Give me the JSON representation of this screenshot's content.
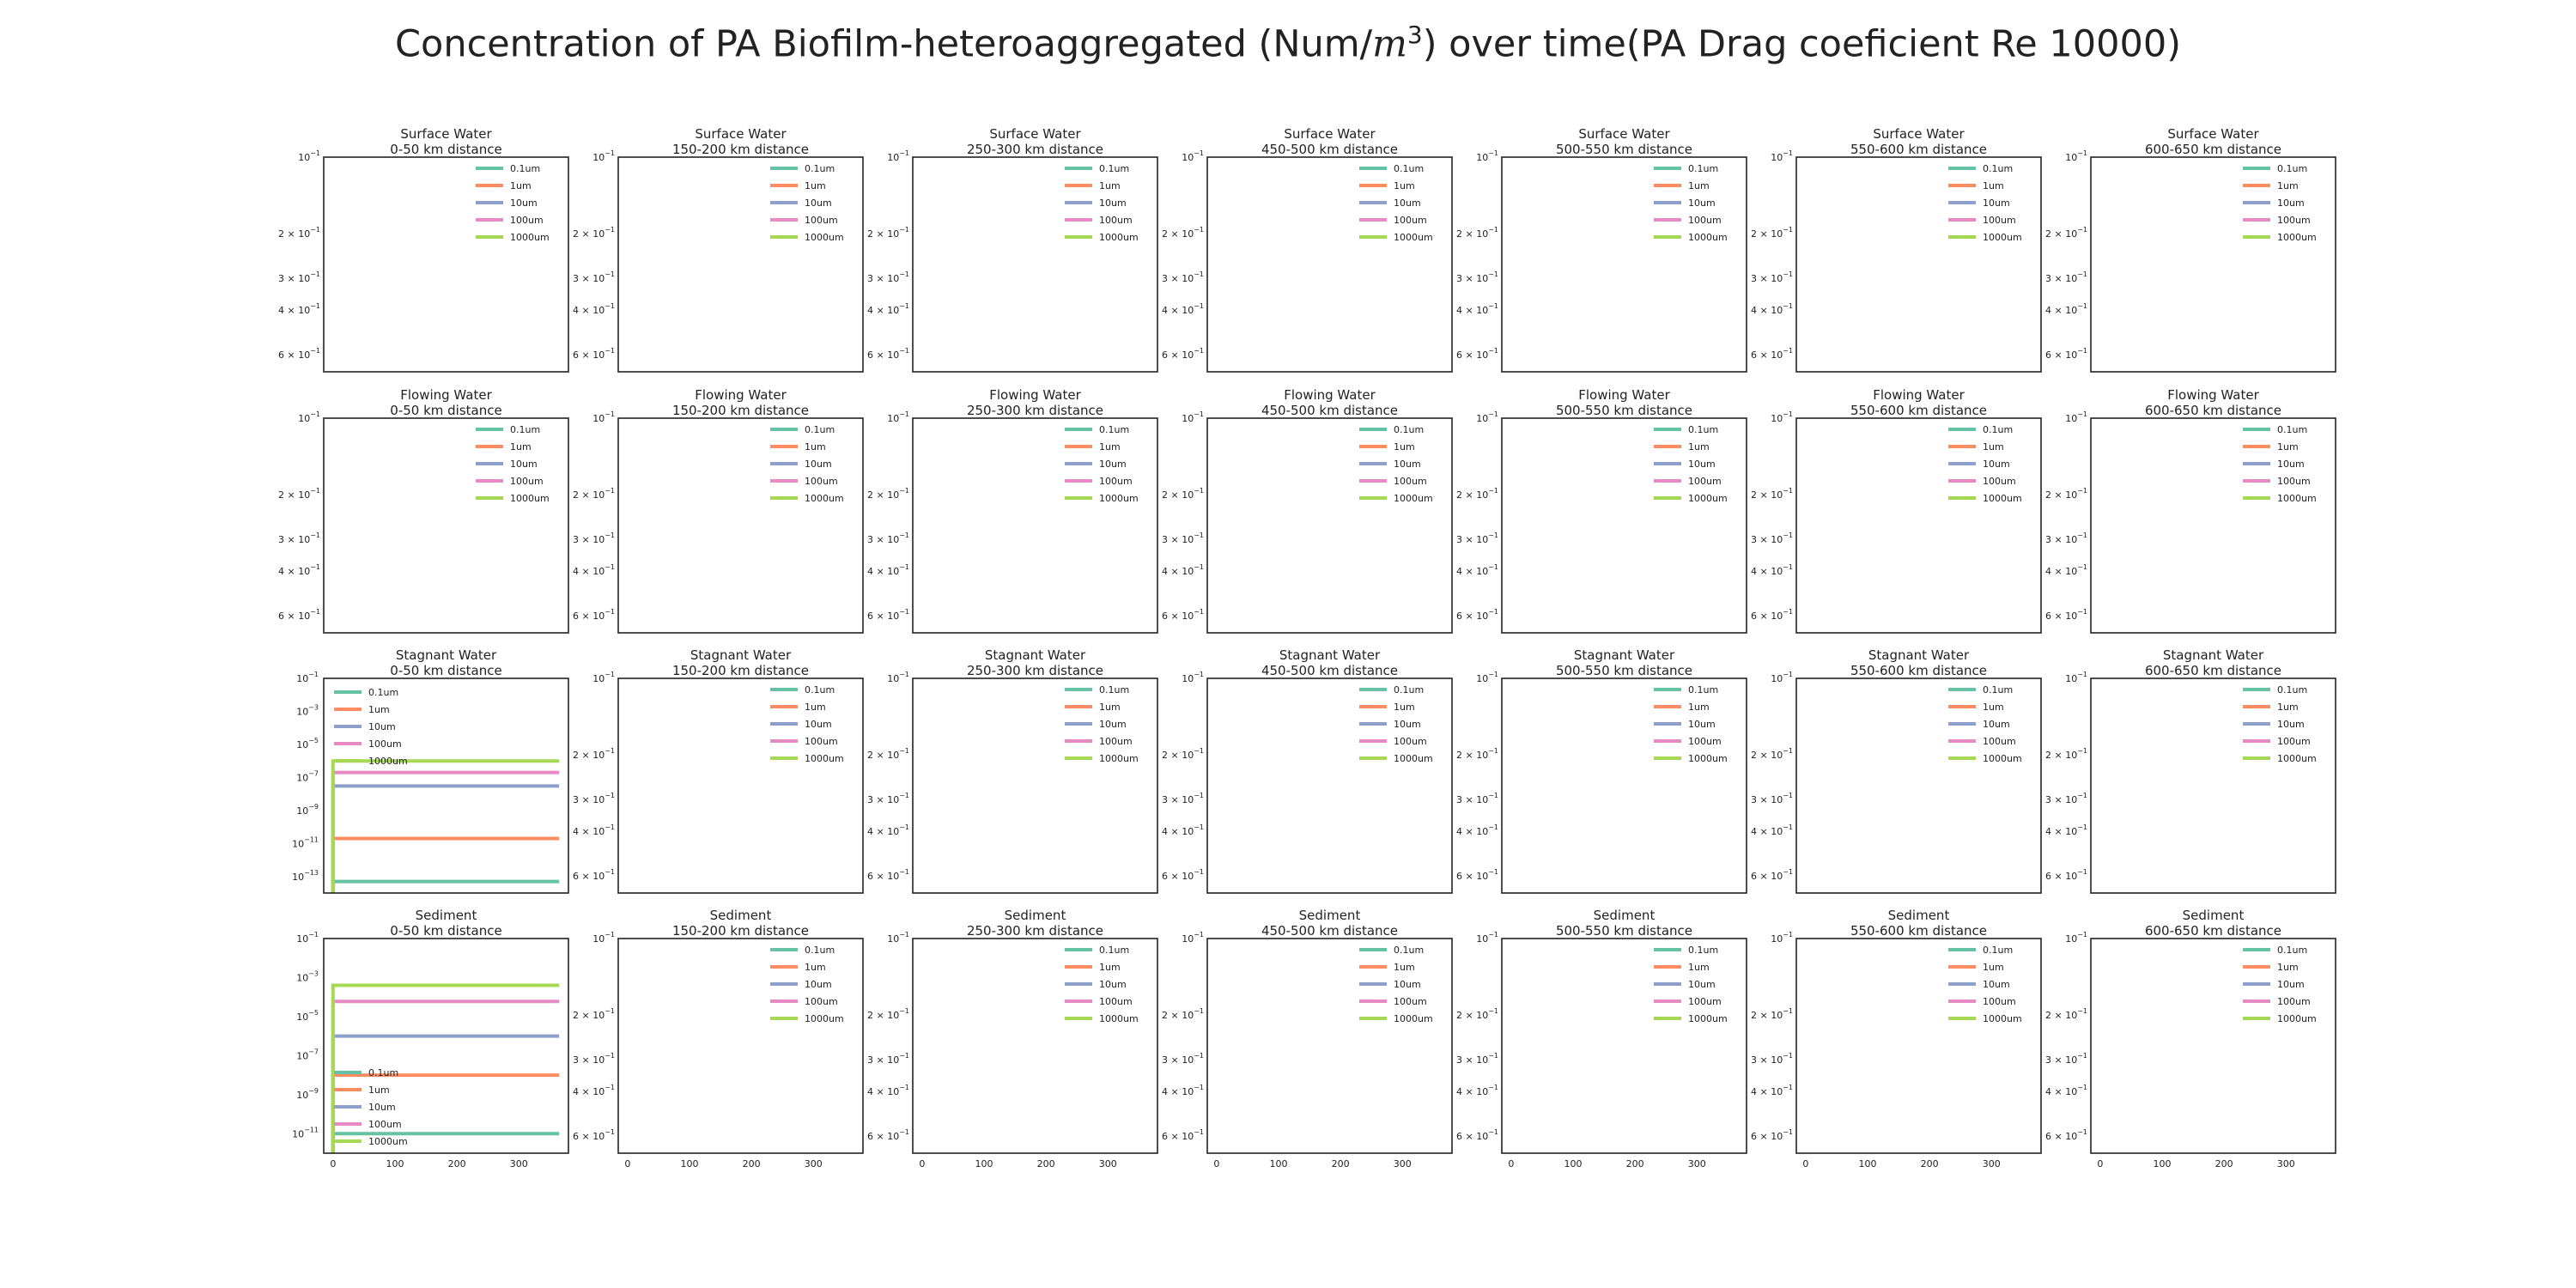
{
  "title": {
    "before": "Concentration of PA Biofilm-heteroaggregated (Num/",
    "math_base": "m",
    "math_sup": "3",
    "after": ") over time(PA Drag coeficient Re 10000)"
  },
  "compartments": [
    "Surface Water",
    "Flowing Water",
    "Stagnant Water",
    "Sediment"
  ],
  "distances": [
    "0-50 km distance",
    "150-200 km distance",
    "250-300 km distance",
    "450-500 km distance",
    "500-550 km distance",
    "550-600 km distance",
    "600-650 km distance"
  ],
  "legend_labels": [
    "0.1um",
    "1um",
    "10um",
    "100um",
    "1000um"
  ],
  "series_colors": [
    "#66c2a5",
    "#fc8d62",
    "#8da0cb",
    "#e78ac3",
    "#a6d854"
  ],
  "empty_yticks": [
    {
      "base": "10",
      "exp": "−1",
      "mant": ""
    },
    {
      "base": "10",
      "exp": "−1",
      "mant": "2 × "
    },
    {
      "base": "10",
      "exp": "−1",
      "mant": "3 × "
    },
    {
      "base": "10",
      "exp": "−1",
      "mant": "4 × "
    },
    {
      "base": "10",
      "exp": "−1",
      "mant": "6 × "
    }
  ],
  "empty_yvalues": [
    0.1,
    0.2,
    0.3,
    0.4,
    0.6
  ],
  "xticks": [
    "0",
    "100",
    "200",
    "300"
  ],
  "chart_data": [
    {
      "type": "line",
      "panel": "Stagnant Water 0-50 km distance",
      "title": "Stagnant Water\n0-50 km distance",
      "y_scale": "log",
      "y_axis_inverted": true,
      "ylim": [
        0.1,
        1e-14
      ],
      "yticks": [
        "10^-1",
        "10^-3",
        "10^-5",
        "10^-7",
        "10^-9",
        "10^-11",
        "10^-13"
      ],
      "xlim": [
        -15,
        380
      ],
      "legend_loc": "upper left",
      "series": [
        {
          "name": "0.1um",
          "x": [
            0,
            0,
            365
          ],
          "y": [
            1e-14,
            5e-14,
            5e-14
          ]
        },
        {
          "name": "1um",
          "x": [
            0,
            0,
            365
          ],
          "y": [
            1e-14,
            2e-11,
            2e-11
          ]
        },
        {
          "name": "10um",
          "x": [
            0,
            0,
            365
          ],
          "y": [
            1e-14,
            3e-08,
            3e-08
          ]
        },
        {
          "name": "100um",
          "x": [
            0,
            0,
            365
          ],
          "y": [
            1e-14,
            2e-07,
            2e-07
          ]
        },
        {
          "name": "1000um",
          "x": [
            0,
            0,
            365
          ],
          "y": [
            1e-14,
            1e-06,
            1e-06
          ]
        }
      ]
    },
    {
      "type": "line",
      "panel": "Sediment 0-50 km distance",
      "title": "Sediment\n0-50 km distance",
      "y_scale": "log",
      "y_axis_inverted": true,
      "ylim": [
        0.1,
        1e-12
      ],
      "yticks": [
        "10^-1",
        "10^-3",
        "10^-5",
        "10^-7",
        "10^-9",
        "10^-11"
      ],
      "xlim": [
        -15,
        380
      ],
      "legend_loc": "lower left",
      "series": [
        {
          "name": "0.1um",
          "x": [
            0,
            0,
            365
          ],
          "y": [
            1e-12,
            1e-11,
            1e-11
          ]
        },
        {
          "name": "1um",
          "x": [
            0,
            0,
            365
          ],
          "y": [
            1e-12,
            1e-08,
            1e-08
          ]
        },
        {
          "name": "10um",
          "x": [
            0,
            0,
            365
          ],
          "y": [
            1e-12,
            1e-06,
            1e-06
          ]
        },
        {
          "name": "100um",
          "x": [
            0,
            0,
            365
          ],
          "y": [
            1e-12,
            6e-05,
            6e-05
          ]
        },
        {
          "name": "1000um",
          "x": [
            0,
            0,
            365
          ],
          "y": [
            1e-12,
            0.0004,
            0.0004
          ]
        }
      ]
    }
  ]
}
